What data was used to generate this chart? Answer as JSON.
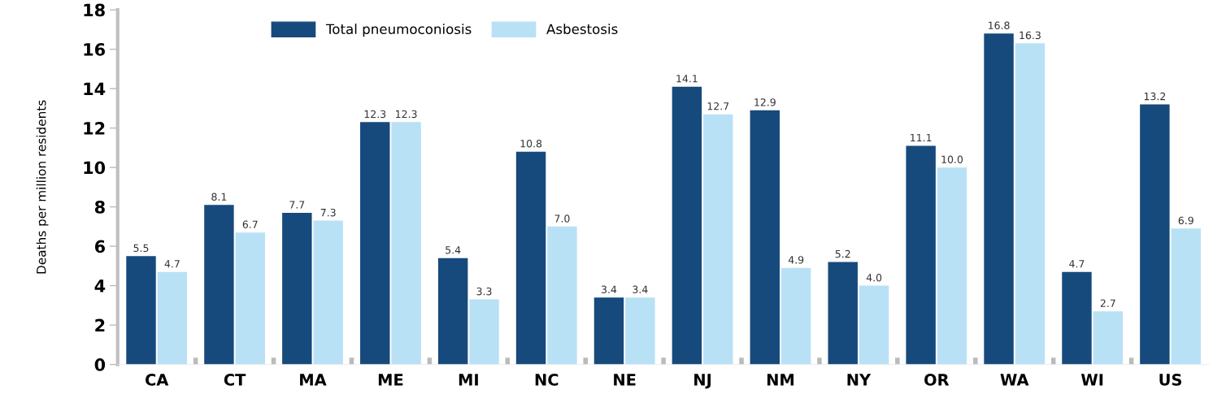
{
  "chart_data": {
    "type": "bar",
    "ylabel": "Deaths per million residents",
    "categories": [
      "CA",
      "CT",
      "MA",
      "ME",
      "MI",
      "NC",
      "NE",
      "NJ",
      "NM",
      "NY",
      "OR",
      "WA",
      "WI",
      "US"
    ],
    "series": [
      {
        "name": "Total pneumoconiosis",
        "color": "#174a7c",
        "values": [
          5.5,
          8.1,
          7.7,
          12.3,
          5.4,
          10.8,
          3.4,
          14.1,
          12.9,
          5.2,
          11.1,
          16.8,
          4.7,
          13.2
        ],
        "value_labels": [
          "5.5",
          "8.1",
          "7.7",
          "12.3",
          "5.4",
          "10.8",
          "3.4",
          "14.1",
          "12.9",
          "5.2",
          "11.1",
          "16.8",
          "4.7",
          "13.2"
        ]
      },
      {
        "name": "Asbestosis",
        "color": "#b9e1f6",
        "values": [
          4.7,
          6.7,
          7.3,
          12.3,
          3.3,
          7.0,
          3.4,
          12.7,
          4.9,
          4.0,
          10.0,
          16.3,
          2.7,
          6.9
        ],
        "value_labels": [
          "4.7",
          "6.7",
          "7.3",
          "12.3",
          "3.3",
          "7.0",
          "3.4",
          "12.7",
          "4.9",
          "4.0",
          "10.0",
          "16.3",
          "2.7",
          "6.9"
        ]
      }
    ],
    "ylim": [
      0,
      18
    ],
    "yticks": [
      0,
      2,
      4,
      6,
      8,
      10,
      12,
      14,
      16,
      18
    ],
    "grid": false,
    "legend": "top left"
  }
}
